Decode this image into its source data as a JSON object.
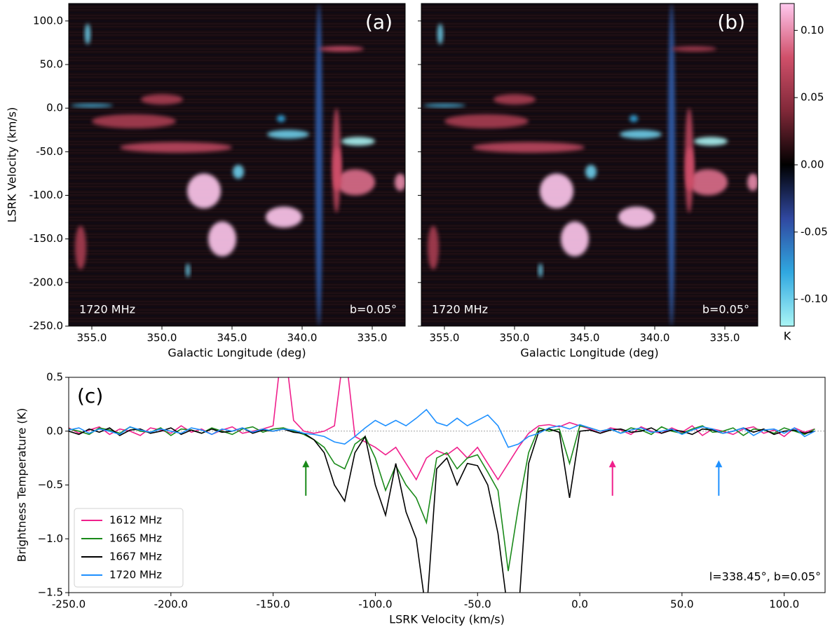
{
  "chart_data": [
    {
      "type": "heatmap",
      "panel_label": "(a)",
      "frequency_label": "1720 MHz",
      "latitude_label": "b=0.05°",
      "xlabel": "Galactic Longitude (deg)",
      "ylabel": "LSRK Velocity (km/s)",
      "xlim": [
        356.65,
        332.65
      ],
      "ylim": [
        -250,
        120
      ],
      "xticks": [
        {
          "value": 355,
          "label": "355.0"
        },
        {
          "value": 350,
          "label": "350.0"
        },
        {
          "value": 345,
          "label": "345.0"
        },
        {
          "value": 340,
          "label": "340.0"
        },
        {
          "value": 335,
          "label": "335.0"
        }
      ],
      "yticks": [
        {
          "value": 100,
          "label": "100.0"
        },
        {
          "value": 50,
          "label": "50.0"
        },
        {
          "value": 0,
          "label": "0.0"
        },
        {
          "value": -50,
          "label": "-50.0"
        },
        {
          "value": -100,
          "label": "-100.0"
        },
        {
          "value": -150,
          "label": "-150.0"
        },
        {
          "value": -200,
          "label": "-200.0"
        },
        {
          "value": -250,
          "label": "-250.0"
        }
      ],
      "ytick_labels": true,
      "blobs": [
        {
          "l": 338.8,
          "v": -65,
          "dl": 0.25,
          "dv": 185,
          "value": -0.05
        },
        {
          "l": 349,
          "v": -45,
          "dl": 4,
          "dv": 6,
          "value": 0.07
        },
        {
          "l": 352,
          "v": -15,
          "dl": 3,
          "dv": 8,
          "value": 0.06
        },
        {
          "l": 350,
          "v": 10,
          "dl": 1.5,
          "dv": 6,
          "value": 0.06
        },
        {
          "l": 347.0,
          "v": -95,
          "dl": 1.2,
          "dv": 20,
          "value": 0.12
        },
        {
          "l": 345.7,
          "v": -150,
          "dl": 1.0,
          "dv": 20,
          "value": 0.12
        },
        {
          "l": 341.3,
          "v": -125,
          "dl": 1.3,
          "dv": 12,
          "value": 0.12
        },
        {
          "l": 336.2,
          "v": -85,
          "dl": 1.4,
          "dv": 15,
          "value": 0.09
        },
        {
          "l": 337.55,
          "v": -60,
          "dl": 0.3,
          "dv": 60,
          "value": 0.07
        },
        {
          "l": 337.5,
          "v": -70,
          "dl": 0.3,
          "dv": 25,
          "value": 0.08
        },
        {
          "l": 333,
          "v": -85,
          "dl": 0.4,
          "dv": 10,
          "value": 0.1
        },
        {
          "l": 355.8,
          "v": -160,
          "dl": 0.4,
          "dv": 25,
          "value": 0.06
        },
        {
          "l": 337.2,
          "v": 68,
          "dl": 1.6,
          "dv": 3,
          "value": 0.08
        },
        {
          "l": 341,
          "v": -30,
          "dl": 1.5,
          "dv": 5,
          "value": -0.1
        },
        {
          "l": 336,
          "v": -38,
          "dl": 1.2,
          "dv": 5,
          "value": -0.12
        },
        {
          "l": 355.3,
          "v": 85,
          "dl": 0.2,
          "dv": 12,
          "value": -0.1
        },
        {
          "l": 355,
          "v": 3,
          "dl": 1.5,
          "dv": 2,
          "value": -0.09
        },
        {
          "l": 344.55,
          "v": -73,
          "dl": 0.4,
          "dv": 8,
          "value": -0.1
        },
        {
          "l": 341.5,
          "v": -12,
          "dl": 0.3,
          "dv": 4,
          "value": -0.08
        },
        {
          "l": 348.15,
          "v": -186,
          "dl": 0.15,
          "dv": 8,
          "value": -0.1
        }
      ]
    },
    {
      "type": "heatmap",
      "panel_label": "(b)",
      "frequency_label": "1720 MHz",
      "latitude_label": "b=0.05°",
      "xlabel": "Galactic Longitude (deg)",
      "xlim": [
        356.65,
        332.65
      ],
      "ylim": [
        -250,
        120
      ],
      "xticks": [
        {
          "value": 355,
          "label": "355.0"
        },
        {
          "value": 350,
          "label": "350.0"
        },
        {
          "value": 345,
          "label": "345.0"
        },
        {
          "value": 340,
          "label": "340.0"
        },
        {
          "value": 335,
          "label": "335.0"
        }
      ],
      "yticks": [
        100,
        50,
        0,
        -50,
        -100,
        -150,
        -200,
        -250
      ],
      "ytick_labels": false,
      "blobs": [
        {
          "l": 338.8,
          "v": -65,
          "dl": 0.25,
          "dv": 185,
          "value": -0.05
        },
        {
          "l": 349,
          "v": -45,
          "dl": 4,
          "dv": 6,
          "value": 0.07
        },
        {
          "l": 352,
          "v": -15,
          "dl": 3,
          "dv": 8,
          "value": 0.06
        },
        {
          "l": 350,
          "v": 10,
          "dl": 1.5,
          "dv": 6,
          "value": 0.06
        },
        {
          "l": 347.0,
          "v": -95,
          "dl": 1.2,
          "dv": 20,
          "value": 0.12
        },
        {
          "l": 345.7,
          "v": -150,
          "dl": 1.0,
          "dv": 20,
          "value": 0.12
        },
        {
          "l": 341.3,
          "v": -125,
          "dl": 1.3,
          "dv": 12,
          "value": 0.12
        },
        {
          "l": 336.2,
          "v": -85,
          "dl": 1.4,
          "dv": 15,
          "value": 0.09
        },
        {
          "l": 337.55,
          "v": -60,
          "dl": 0.3,
          "dv": 60,
          "value": 0.07
        },
        {
          "l": 337.5,
          "v": -70,
          "dl": 0.3,
          "dv": 25,
          "value": 0.08
        },
        {
          "l": 333,
          "v": -85,
          "dl": 0.4,
          "dv": 10,
          "value": 0.1
        },
        {
          "l": 355.8,
          "v": -160,
          "dl": 0.4,
          "dv": 25,
          "value": 0.06
        },
        {
          "l": 337.2,
          "v": 68,
          "dl": 1.6,
          "dv": 3,
          "value": 0.06
        },
        {
          "l": 341,
          "v": -30,
          "dl": 1.5,
          "dv": 5,
          "value": -0.1
        },
        {
          "l": 336,
          "v": -38,
          "dl": 1.2,
          "dv": 5,
          "value": -0.12
        },
        {
          "l": 355.3,
          "v": 85,
          "dl": 0.2,
          "dv": 12,
          "value": -0.1
        },
        {
          "l": 355,
          "v": 3,
          "dl": 1.5,
          "dv": 2,
          "value": -0.09
        },
        {
          "l": 344.55,
          "v": -73,
          "dl": 0.4,
          "dv": 8,
          "value": -0.1
        },
        {
          "l": 341.5,
          "v": -12,
          "dl": 0.3,
          "dv": 4,
          "value": -0.08
        },
        {
          "l": 348.15,
          "v": -186,
          "dl": 0.15,
          "dv": 8,
          "value": -0.1
        }
      ],
      "colorbar": {
        "label": "K",
        "lim": [
          -0.12,
          0.12
        ],
        "colors": [
          "#aaf5f5",
          "#30a8e0",
          "#3048a0",
          "#000000",
          "#802838",
          "#d0506a",
          "#ffc8ee"
        ],
        "ticks": [
          {
            "value": 0.1,
            "label": "0.10"
          },
          0.05,
          {
            "value": 0,
            "label": "0.00"
          },
          -0.05,
          {
            "value": -0.1,
            "label": "-0.10"
          }
        ]
      }
    },
    {
      "type": "line",
      "panel_label": "(c)",
      "position_label": "l=338.45°, b=0.05°",
      "xlabel": "LSRK Velocity (km/s)",
      "ylabel": "Brightness Temperature (K)",
      "xlim": [
        -250,
        120
      ],
      "ylim": [
        -1.5,
        0.5
      ],
      "xticks": [
        {
          "value": -250,
          "label": "-250.0"
        },
        {
          "value": -200,
          "label": "-200.0"
        },
        {
          "value": -150,
          "label": "-150.0"
        },
        {
          "value": -100,
          "label": "-100.0"
        },
        {
          "value": -50,
          "label": "-50.0"
        },
        {
          "value": 0,
          "label": "0.0"
        },
        {
          "value": 50,
          "label": "50.0"
        },
        {
          "value": 100,
          "label": "100.0"
        }
      ],
      "yticks": [
        0.5,
        {
          "value": 0,
          "label": "0.0"
        },
        {
          "value": -0.5,
          "label": "−0.5"
        },
        {
          "value": -1,
          "label": "−1.0"
        },
        {
          "value": -1.5,
          "label": "−1.5"
        }
      ],
      "zero_line": true,
      "legend": "lower left",
      "x": [
        -250,
        -245,
        -240,
        -235,
        -230,
        -225,
        -220,
        -215,
        -210,
        -205,
        -200,
        -195,
        -190,
        -185,
        -180,
        -175,
        -170,
        -165,
        -160,
        -155,
        -150,
        -145,
        -140,
        -135,
        -130,
        -125,
        -120,
        -115,
        -110,
        -105,
        -100,
        -95,
        -90,
        -85,
        -80,
        -75,
        -70,
        -65,
        -60,
        -55,
        -50,
        -45,
        -40,
        -35,
        -30,
        -25,
        -20,
        -15,
        -10,
        -5,
        0,
        5,
        10,
        15,
        20,
        25,
        30,
        35,
        40,
        45,
        50,
        55,
        60,
        65,
        70,
        75,
        80,
        85,
        90,
        95,
        100,
        105,
        110,
        115
      ],
      "series": [
        {
          "name": "1612 MHz",
          "color": "#f0208c",
          "values": [
            0.03,
            -0.02,
            0.01,
            0.04,
            -0.03,
            0.02,
            0.0,
            -0.04,
            0.03,
            0.01,
            -0.02,
            0.05,
            -0.01,
            0.02,
            -0.03,
            0.01,
            0.04,
            -0.02,
            0.0,
            0.02,
            0.05,
            0.9,
            0.1,
            0.0,
            -0.02,
            0.0,
            0.05,
            0.8,
            -0.05,
            -0.1,
            -0.15,
            -0.22,
            -0.15,
            -0.3,
            -0.45,
            -0.25,
            -0.18,
            -0.22,
            -0.15,
            -0.25,
            -0.15,
            -0.3,
            -0.45,
            -0.3,
            -0.15,
            -0.02,
            0.05,
            0.06,
            0.04,
            0.08,
            0.05,
            0.02,
            -0.02,
            0.03,
            0.01,
            -0.03,
            0.04,
            0.0,
            -0.02,
            0.03,
            -0.01,
            0.05,
            -0.04,
            0.02,
            0.0,
            -0.03,
            0.02,
            0.04,
            -0.02,
            0.01,
            -0.05,
            0.03,
            -0.01,
            0.02
          ]
        },
        {
          "name": "1665 MHz",
          "color": "#1a8a1a",
          "values": [
            0.02,
            0.0,
            -0.03,
            0.03,
            0.01,
            -0.02,
            0.04,
            0.0,
            -0.01,
            0.03,
            -0.04,
            0.02,
            0.01,
            -0.02,
            0.03,
            0.0,
            -0.03,
            0.02,
            0.04,
            -0.01,
            0.02,
            0.03,
            0.0,
            -0.03,
            -0.08,
            -0.15,
            -0.3,
            -0.35,
            -0.12,
            -0.05,
            -0.25,
            -0.55,
            -0.32,
            -0.5,
            -0.62,
            -0.85,
            -0.25,
            -0.2,
            -0.35,
            -0.25,
            -0.22,
            -0.38,
            -0.55,
            -1.3,
            -0.7,
            -0.2,
            0.03,
            0.0,
            0.02,
            -0.3,
            0.05,
            0.03,
            0.0,
            0.02,
            -0.02,
            0.03,
            0.01,
            -0.03,
            0.04,
            0.0,
            -0.02,
            0.02,
            0.05,
            -0.01,
            0.0,
            0.03,
            -0.04,
            0.02,
            0.01,
            -0.02,
            0.03,
            0.0,
            -0.03,
            0.02
          ]
        },
        {
          "name": "1667 MHz",
          "color": "#000000",
          "values": [
            0.0,
            -0.03,
            0.02,
            -0.01,
            0.03,
            -0.04,
            0.01,
            0.02,
            -0.02,
            0.0,
            0.03,
            -0.03,
            0.01,
            -0.02,
            0.02,
            -0.01,
            0.0,
            0.03,
            -0.02,
            0.01,
            0.0,
            0.02,
            -0.01,
            -0.02,
            -0.08,
            -0.2,
            -0.5,
            -0.65,
            -0.2,
            -0.05,
            -0.5,
            -0.78,
            -0.3,
            -0.75,
            -1.0,
            -1.7,
            -0.35,
            -0.25,
            -0.5,
            -0.3,
            -0.32,
            -0.5,
            -0.95,
            -1.7,
            -1.7,
            -0.3,
            0.0,
            0.02,
            -0.01,
            -0.62,
            0.0,
            0.01,
            -0.02,
            0.01,
            0.02,
            -0.01,
            0.0,
            0.03,
            -0.02,
            0.01,
            0.0,
            -0.03,
            0.02,
            0.01,
            -0.02,
            0.0,
            0.03,
            -0.01,
            0.02,
            -0.03,
            0.0,
            0.01,
            -0.02,
            0.0
          ]
        },
        {
          "name": "1720 MHz",
          "color": "#1e90ff",
          "values": [
            0.01,
            0.03,
            -0.02,
            0.02,
            0.0,
            -0.03,
            0.04,
            0.01,
            -0.01,
            0.02,
            0.0,
            -0.02,
            0.03,
            0.01,
            -0.03,
            0.02,
            0.0,
            0.03,
            -0.01,
            0.02,
            0.0,
            0.02,
            0.01,
            -0.02,
            -0.03,
            -0.05,
            -0.1,
            -0.12,
            -0.05,
            0.03,
            0.1,
            0.05,
            0.1,
            0.05,
            0.12,
            0.2,
            0.08,
            0.05,
            0.12,
            0.05,
            0.1,
            0.15,
            0.05,
            -0.15,
            -0.12,
            -0.05,
            -0.02,
            0.03,
            0.05,
            0.02,
            0.06,
            0.03,
            0.0,
            0.02,
            -0.02,
            0.01,
            0.03,
            -0.01,
            0.0,
            0.02,
            -0.03,
            0.01,
            0.04,
            0.02,
            -0.02,
            0.0,
            0.03,
            -0.04,
            0.01,
            0.02,
            -0.02,
            0.03,
            -0.05,
            0.0
          ]
        }
      ],
      "arrows": [
        {
          "x": -134,
          "y_start": -0.6,
          "y_end": -0.27,
          "color": "#1a8a1a"
        },
        {
          "x": 16,
          "y_start": -0.6,
          "y_end": -0.27,
          "color": "#f0208c"
        },
        {
          "x": 68,
          "y_start": -0.6,
          "y_end": -0.27,
          "color": "#1e90ff"
        }
      ]
    }
  ]
}
